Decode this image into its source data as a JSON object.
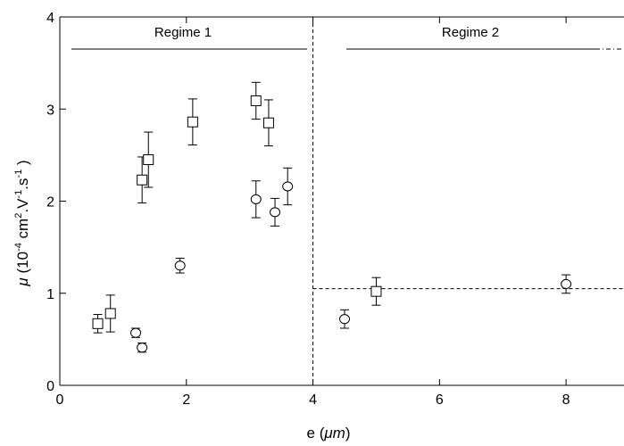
{
  "chart_data": {
    "type": "scatter",
    "xlabel": {
      "var": "e",
      "unit": "μm"
    },
    "ylabel": {
      "var": "μ",
      "text": "(10-4 cm2.V-1.s-1)"
    },
    "xlim": [
      0,
      9
    ],
    "ylim": [
      0,
      4
    ],
    "x_ticks": [
      0,
      2,
      4,
      6,
      8
    ],
    "y_ticks": [
      0,
      1,
      2,
      3,
      4
    ],
    "grid": false,
    "series": [
      {
        "marker": "square",
        "points": [
          {
            "x": 0.6,
            "y": 0.67,
            "err": 0.1
          },
          {
            "x": 0.8,
            "y": 0.78,
            "err": 0.2
          },
          {
            "x": 1.3,
            "y": 2.23,
            "err": 0.25
          },
          {
            "x": 1.4,
            "y": 2.45,
            "err": 0.3
          },
          {
            "x": 2.1,
            "y": 2.86,
            "err": 0.25
          },
          {
            "x": 3.1,
            "y": 3.09,
            "err": 0.2
          },
          {
            "x": 3.3,
            "y": 2.85,
            "err": 0.25
          },
          {
            "x": 5.0,
            "y": 1.02,
            "err": 0.15
          }
        ]
      },
      {
        "marker": "circle",
        "points": [
          {
            "x": 1.2,
            "y": 0.57,
            "err": 0.05
          },
          {
            "x": 1.3,
            "y": 0.41,
            "err": 0.05
          },
          {
            "x": 1.9,
            "y": 1.3,
            "err": 0.08
          },
          {
            "x": 3.1,
            "y": 2.02,
            "err": 0.2
          },
          {
            "x": 3.4,
            "y": 1.88,
            "err": 0.15
          },
          {
            "x": 3.6,
            "y": 2.16,
            "err": 0.2
          },
          {
            "x": 4.5,
            "y": 0.72,
            "err": 0.1
          },
          {
            "x": 8.0,
            "y": 1.1,
            "err": 0.1
          }
        ]
      }
    ],
    "annotations": [
      {
        "text": "Regime 1"
      },
      {
        "text": "Regime 2"
      }
    ],
    "reference_lines": {
      "vertical_x": 4,
      "horizontal_y": 1.05
    }
  }
}
